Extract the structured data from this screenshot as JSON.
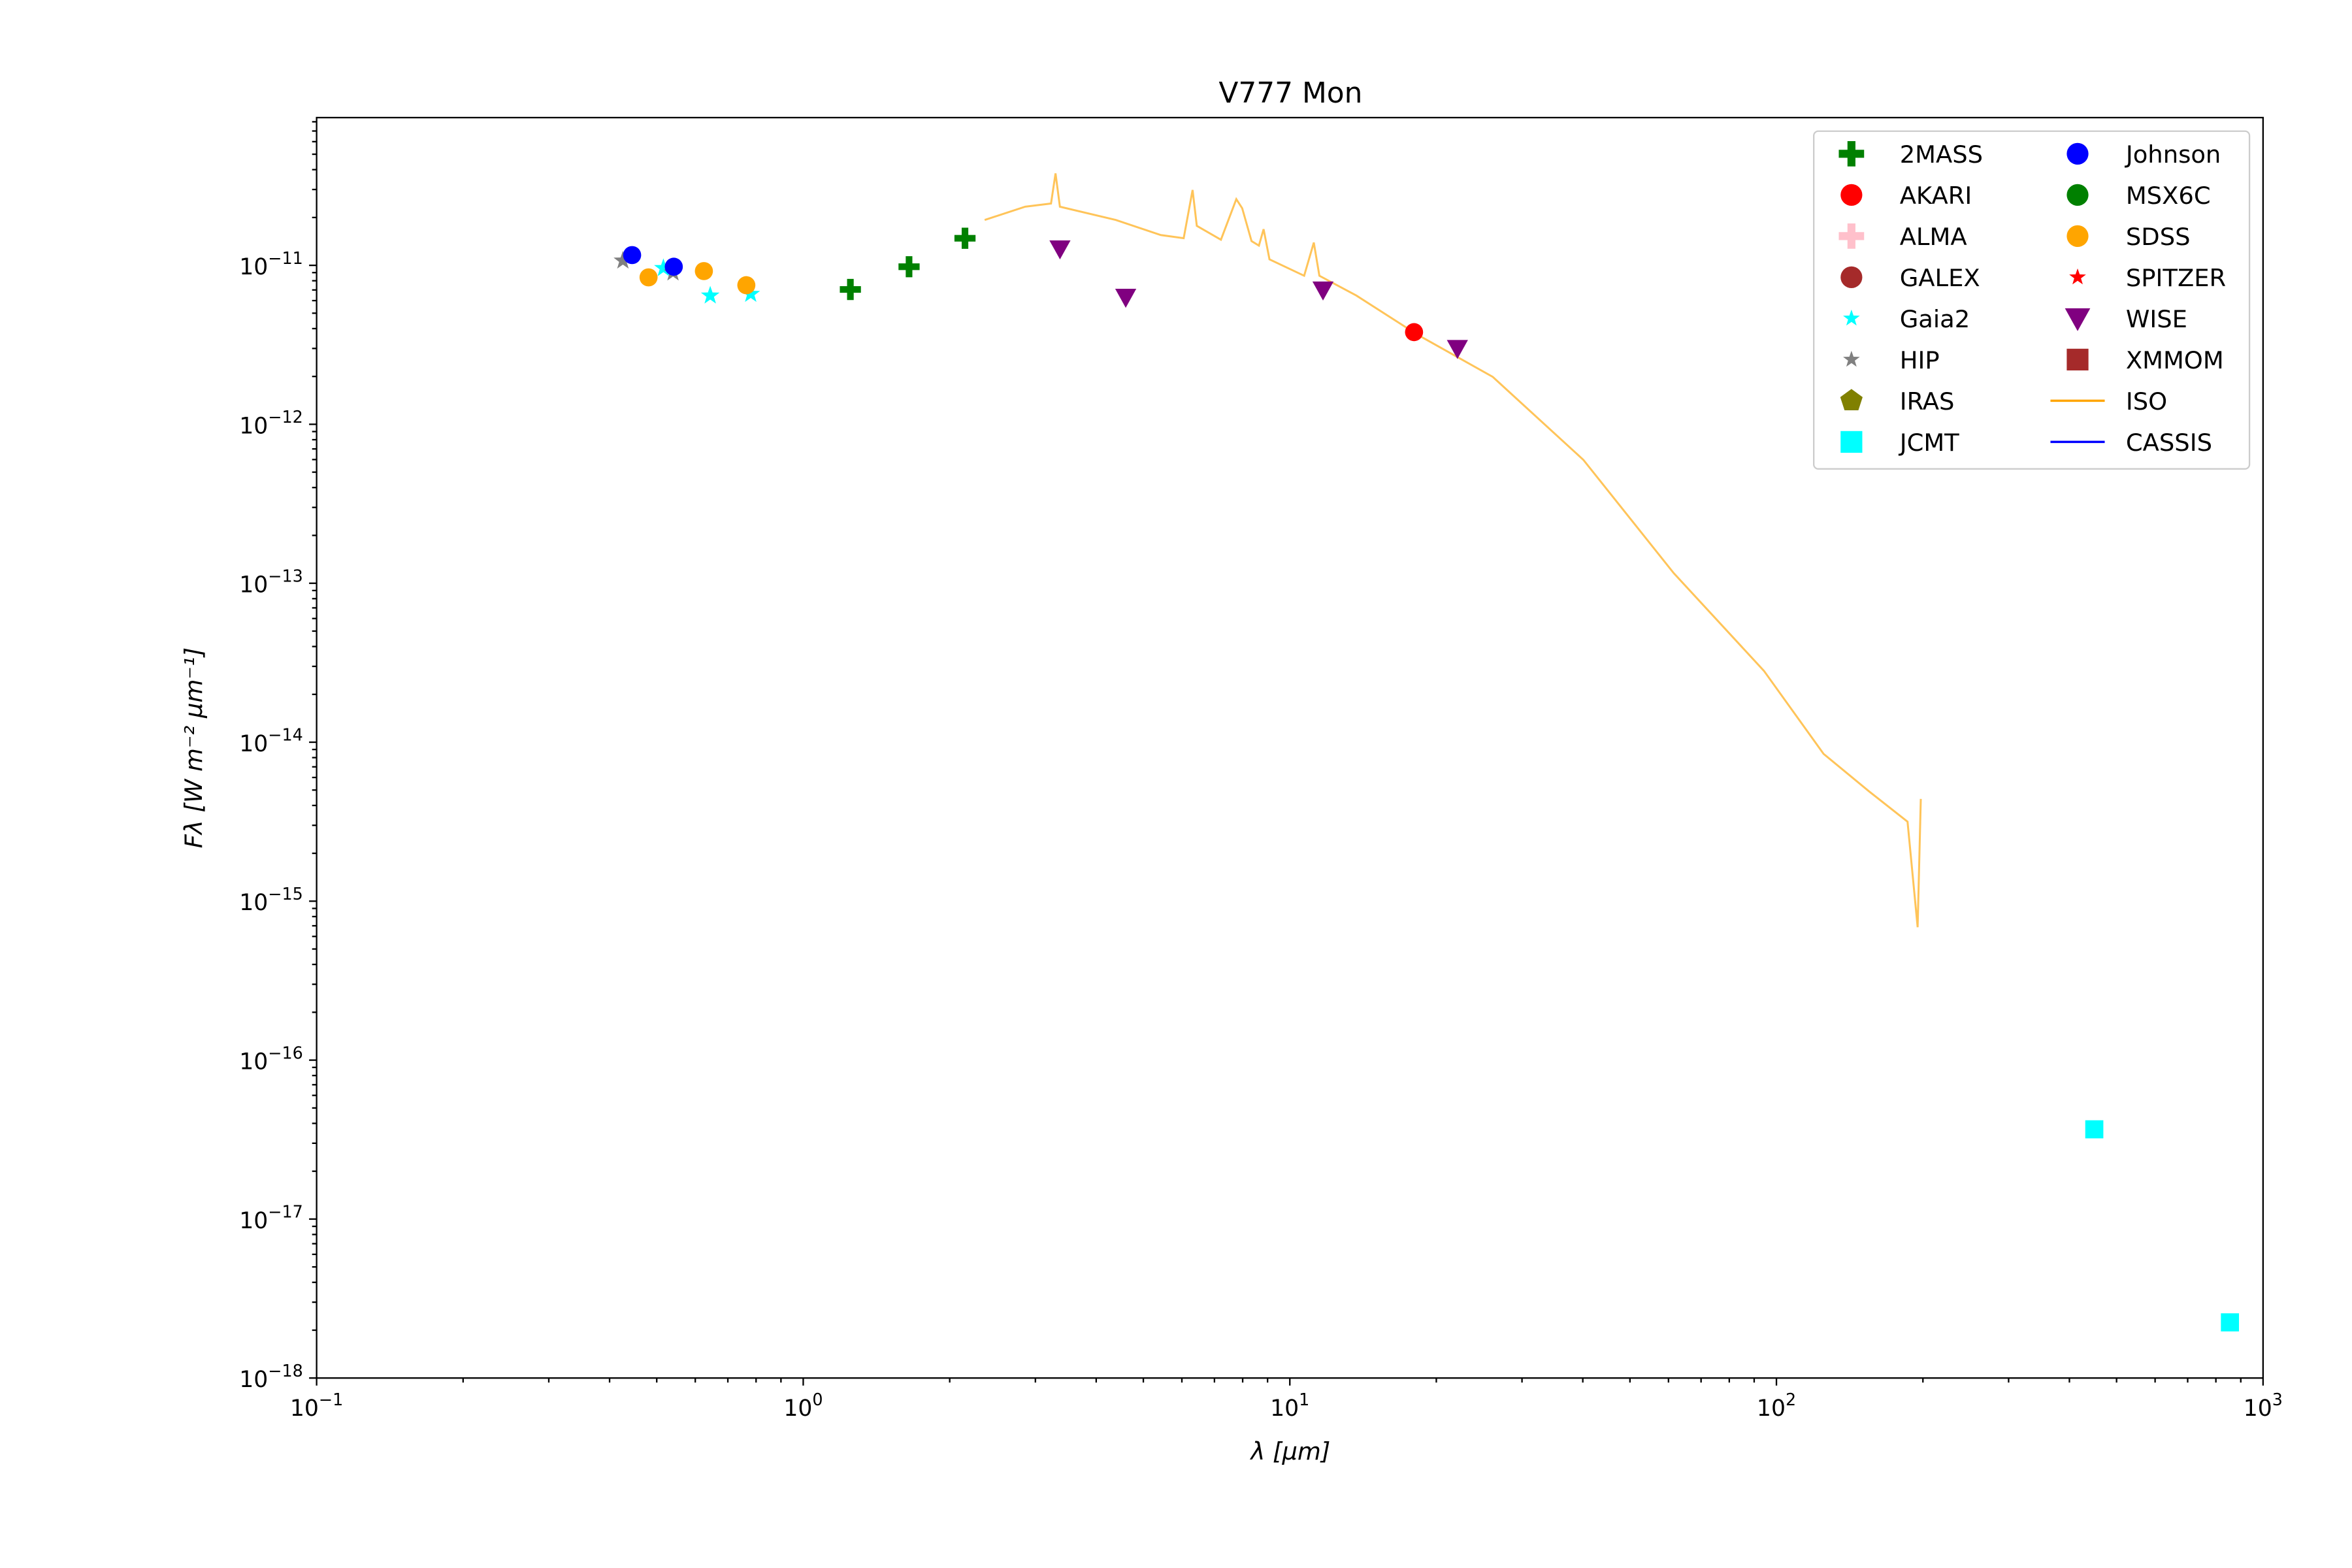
{
  "chart_data": {
    "type": "scatter",
    "title": "V777 Mon",
    "xlabel": "λ [μm]",
    "ylabel": "Fλ [W m⁻² μm⁻¹]",
    "xscale": "log",
    "yscale": "log",
    "xlim": [
      0.1,
      1000
    ],
    "ylim": [
      1e-18,
      8.5e-11
    ],
    "grid": false,
    "legend_position": "top-right",
    "x_tick_labels": [
      {
        "base": "10",
        "exp": "−1"
      },
      {
        "base": "10",
        "exp": "0"
      },
      {
        "base": "10",
        "exp": "1"
      },
      {
        "base": "10",
        "exp": "2"
      },
      {
        "base": "10",
        "exp": "3"
      }
    ],
    "x_ticks": [
      0.1,
      1,
      10,
      100,
      1000
    ],
    "y_tick_labels": [
      {
        "base": "10",
        "exp": "−11"
      },
      {
        "base": "10",
        "exp": "−12"
      },
      {
        "base": "10",
        "exp": "−13"
      },
      {
        "base": "10",
        "exp": "−14"
      },
      {
        "base": "10",
        "exp": "−15"
      },
      {
        "base": "10",
        "exp": "−16"
      },
      {
        "base": "10",
        "exp": "−17"
      },
      {
        "base": "10",
        "exp": "−18"
      }
    ],
    "y_ticks": [
      1e-11,
      1e-12,
      1e-13,
      1e-14,
      1e-15,
      1e-16,
      1e-17,
      1e-18
    ],
    "series": [
      {
        "name": "2MASS",
        "marker": "plus",
        "color": "#008000",
        "x": [
          1.25,
          1.65,
          2.15
        ],
        "y": [
          7.05e-12,
          9.8e-12,
          1.48e-11
        ]
      },
      {
        "name": "AKARI",
        "marker": "circle",
        "color": "#ff0000",
        "x": [
          18.0
        ],
        "y": [
          3.8e-12
        ]
      },
      {
        "name": "ALMA",
        "marker": "plus",
        "color": "#ffc0cb",
        "x": [],
        "y": []
      },
      {
        "name": "GALEX",
        "marker": "circle",
        "color": "#a52a2a",
        "x": [],
        "y": []
      },
      {
        "name": "Gaia2",
        "marker": "star",
        "color": "#00ffff",
        "x": [
          0.516,
          0.644,
          0.78
        ],
        "y": [
          9.6e-12,
          6.45e-12,
          6.6e-12
        ]
      },
      {
        "name": "HIP",
        "marker": "star",
        "color": "#808080",
        "x": [
          0.426,
          0.54
        ],
        "y": [
          1.07e-11,
          9e-12
        ]
      },
      {
        "name": "IRAS",
        "marker": "pentagon",
        "color": "#808000",
        "x": [],
        "y": []
      },
      {
        "name": "JCMT",
        "marker": "square",
        "color": "#00ffff",
        "x": [
          450,
          855
        ],
        "y": [
          3.67e-17,
          2.24e-18
        ]
      },
      {
        "name": "Johnson",
        "marker": "circle",
        "color": "#0000ff",
        "x": [
          0.445,
          0.542
        ],
        "y": [
          1.16e-11,
          9.8e-12
        ]
      },
      {
        "name": "MSX6C",
        "marker": "circle",
        "color": "#008000",
        "x": [],
        "y": []
      },
      {
        "name": "SDSS",
        "marker": "circle",
        "color": "#ffa500",
        "x": [
          0.481,
          0.625,
          0.764
        ],
        "y": [
          8.4e-12,
          9.2e-12,
          7.5e-12
        ]
      },
      {
        "name": "SPITZER",
        "marker": "star",
        "color": "#ff0000",
        "x": [],
        "y": []
      },
      {
        "name": "WISE",
        "marker": "triangle-down",
        "color": "#800080",
        "x": [
          3.37,
          4.6,
          11.7,
          22.1
        ],
        "y": [
          1.27e-11,
          6.3e-12,
          7e-12,
          3e-12
        ]
      },
      {
        "name": "XMMOM",
        "marker": "square",
        "color": "#a52a2a",
        "x": [],
        "y": []
      },
      {
        "name": "ISO",
        "marker": "line",
        "color": "#ffa500",
        "x": [
          2.36,
          2.86,
          3.23,
          3.3,
          3.37,
          4.39,
          5.43,
          6.05,
          6.31,
          6.44,
          7.22,
          7.76,
          7.98,
          8.34,
          8.64,
          8.83,
          9.08,
          10.7,
          11.2,
          11.5,
          13.7,
          18.3,
          26.1,
          40.1,
          61.5,
          94.3,
          125,
          155,
          186,
          195,
          198
        ],
        "y": [
          1.93e-11,
          2.34e-11,
          2.45e-11,
          3.79e-11,
          2.34e-11,
          1.93e-11,
          1.55e-11,
          1.48e-11,
          2.98e-11,
          1.77e-11,
          1.45e-11,
          2.61e-11,
          2.29e-11,
          1.42e-11,
          1.33e-11,
          1.69e-11,
          1.09e-11,
          8.6e-12,
          1.39e-11,
          8.6e-12,
          6.46e-12,
          3.66e-12,
          1.99e-12,
          5.97e-13,
          1.16e-13,
          2.81e-14,
          8.45e-15,
          4.9e-15,
          3.16e-15,
          6.86e-16,
          4.4e-15
        ]
      },
      {
        "name": "CASSIS",
        "marker": "line",
        "color": "#0000ff",
        "x": [],
        "y": []
      }
    ]
  }
}
